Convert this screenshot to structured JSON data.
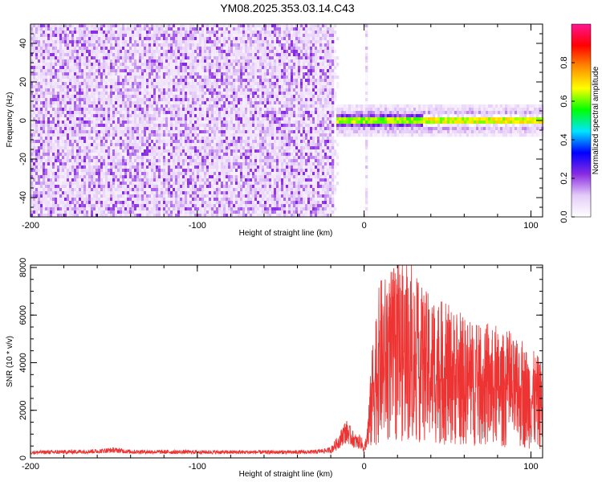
{
  "title": "YM08.2025.353.03.14.C43",
  "chart_data": [
    {
      "type": "heatmap",
      "title": "YM08.2025.353.03.14.C43",
      "xlabel": "Height of straight line (km)",
      "ylabel": "Frequency (Hz)",
      "xlim": [
        -200,
        107
      ],
      "ylim": [
        -50,
        50
      ],
      "x_ticks": [
        -200,
        -100,
        0,
        100
      ],
      "y_ticks": [
        -40,
        -20,
        0,
        20,
        40
      ],
      "colorbar": {
        "label": "Normalized spectral amplitude",
        "range": [
          0,
          1
        ],
        "ticks": [
          0.0,
          0.2,
          0.4,
          0.6,
          0.8
        ],
        "colors": [
          "#ffffff",
          "#e4ccf8",
          "#8a2be2",
          "#0000ff",
          "#00e5ff",
          "#00ff00",
          "#ffff00",
          "#ff8c00",
          "#ff0000",
          "#ff1493"
        ]
      },
      "regions": [
        {
          "name": "noise band",
          "x": [
            -200,
            -18
          ],
          "freq": [
            -50,
            50
          ],
          "amplitude": 0.2
        },
        {
          "name": "dispersion line",
          "x": [
            0,
            2
          ],
          "freq": [
            -50,
            50
          ],
          "amplitude": 0.15
        },
        {
          "name": "signal band",
          "x": [
            -17,
            107
          ],
          "freq": [
            -4,
            4
          ],
          "amplitude_peak": 0.95
        }
      ]
    },
    {
      "type": "line",
      "xlabel": "Height of straight line (km)",
      "ylabel": "SNR (10 * v/v)",
      "xlim": [
        -200,
        107
      ],
      "ylim": [
        0,
        8100
      ],
      "x_ticks": [
        -200,
        -100,
        0,
        100
      ],
      "y_ticks": [
        0,
        2000,
        4000,
        6000,
        8000
      ],
      "series": [
        {
          "name": "SNR",
          "color": "#ee3333",
          "x": [
            -200,
            -180,
            -160,
            -150,
            -140,
            -120,
            -100,
            -80,
            -60,
            -40,
            -30,
            -20,
            -15,
            -12,
            -10,
            -8,
            -6,
            -4,
            -2,
            0,
            2,
            4,
            6,
            10,
            15,
            20,
            25,
            30,
            40,
            50,
            60,
            70,
            80,
            90,
            100,
            107
          ],
          "values": [
            230,
            250,
            280,
            330,
            260,
            250,
            245,
            240,
            240,
            240,
            250,
            330,
            700,
            1050,
            1100,
            900,
            750,
            650,
            700,
            350,
            900,
            2000,
            3300,
            4100,
            4200,
            4500,
            4400,
            4100,
            3700,
            3500,
            3200,
            3000,
            2900,
            2700,
            2500,
            2200
          ]
        }
      ]
    }
  ]
}
